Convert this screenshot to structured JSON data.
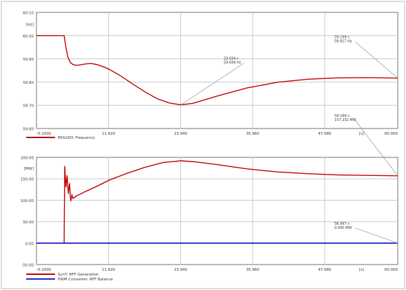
{
  "chart_data": [
    {
      "type": "line",
      "ylabel": "",
      "y_tick_labels": [
        "60.10",
        "[Hz]",
        "60.00",
        "59.90",
        "59.80",
        "59.70",
        "59.60"
      ],
      "x_tick_labels": [
        "-0.1000",
        "11.920",
        "23.940",
        "35.960",
        "47.980",
        "[s]",
        "60.000"
      ],
      "xlim": [
        -0.1,
        60.0
      ],
      "ylim": [
        59.6,
        60.1
      ],
      "grid": true,
      "legend_position": "bottom-left",
      "series": [
        {
          "name": "MOLODI: Frequency",
          "color": "#c00000",
          "x": [
            -0.1,
            3.0,
            4.5,
            4.8,
            5.1,
            5.5,
            6.0,
            6.5,
            7.0,
            8.0,
            9.0,
            10.0,
            11.0,
            12.0,
            14.0,
            16.0,
            18.0,
            20.0,
            22.0,
            23.94,
            26.0,
            30.0,
            35.0,
            40.0,
            45.0,
            50.0,
            55.0,
            60.0
          ],
          "y": [
            60.0,
            60.0,
            60.0,
            59.95,
            59.91,
            59.885,
            59.875,
            59.872,
            59.873,
            59.878,
            59.88,
            59.875,
            59.866,
            59.855,
            59.825,
            59.79,
            59.757,
            59.728,
            59.71,
            59.702,
            59.709,
            59.74,
            59.775,
            59.799,
            59.812,
            59.818,
            59.819,
            59.817
          ]
        }
      ],
      "annotations": [
        {
          "lines": [
            "23.034 s",
            "59.699 Hz"
          ],
          "x": 23.94,
          "y": 59.702
        },
        {
          "lines": [
            "59.199 s",
            "59.817 Hz"
          ],
          "x": 60.0,
          "y": 59.817
        }
      ]
    },
    {
      "type": "line",
      "ylabel": "",
      "y_tick_labels": [
        "200.00",
        "[MW]",
        "150.00",
        "100.00",
        "50.00",
        "0.00",
        "-50.00"
      ],
      "x_tick_labels": [
        "-0.1000",
        "11.920",
        "23.940",
        "35.960",
        "47.980",
        "[s]",
        "60.000"
      ],
      "xlim": [
        -0.1,
        60.0
      ],
      "ylim": [
        -50,
        200
      ],
      "grid": true,
      "legend_position": "bottom-left",
      "series": [
        {
          "name": "SynT: RFF Generation",
          "color": "#c00000",
          "x": [
            -0.1,
            4.4,
            4.5,
            4.6,
            4.8,
            5.0,
            5.2,
            5.4,
            5.6,
            5.8,
            6.0,
            6.5,
            7.0,
            8.0,
            10.0,
            12.0,
            15.0,
            18.0,
            21.0,
            23.94,
            26.0,
            30.0,
            35.0,
            40.0,
            45.0,
            50.0,
            55.0,
            60.0
          ],
          "y": [
            0,
            0,
            0,
            180,
            130,
            158,
            115,
            140,
            98,
            112,
            104,
            110,
            113,
            120,
            133,
            147,
            163,
            177,
            188,
            192,
            190,
            183,
            173,
            166,
            162,
            159,
            158,
            157
          ]
        },
        {
          "name": "PWM Converter: RFF Balance",
          "color": "#2020d0",
          "x": [
            -0.1,
            60.0
          ],
          "y": [
            0,
            0
          ]
        }
      ],
      "annotations": [
        {
          "lines": [
            "59.199 s",
            "157.232 MW"
          ],
          "x": 60.0,
          "y": 157.0
        },
        {
          "lines": [
            "58.997 s",
            "0.000 MW"
          ],
          "x": 60.0,
          "y": 0
        }
      ]
    }
  ]
}
